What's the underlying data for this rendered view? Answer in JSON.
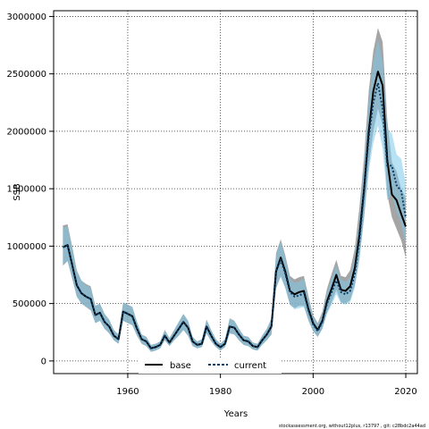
{
  "chart_data": {
    "type": "line",
    "xlabel": "Years",
    "ylabel": "SSB",
    "xlim": [
      1944,
      2022.5
    ],
    "ylim": [
      -110000,
      3050000
    ],
    "xticks": [
      1960,
      1980,
      2000,
      2020
    ],
    "xtick_labels": [
      "1960",
      "1980",
      "2000",
      "2020"
    ],
    "yticks": [
      0,
      500000,
      1000000,
      1500000,
      2000000,
      2500000,
      3000000
    ],
    "ytick_labels": [
      "0",
      "500000",
      "1000000",
      "1500000",
      "2000000",
      "2500000",
      "3000000"
    ],
    "grid": true,
    "legend_position": "bottom-center",
    "footer": "stockassessment.org, without12plus, r13797 , git: c28bdc2a44ad",
    "x": [
      1946,
      1947,
      1948,
      1949,
      1950,
      1951,
      1952,
      1953,
      1954,
      1955,
      1956,
      1957,
      1958,
      1959,
      1960,
      1961,
      1962,
      1963,
      1964,
      1965,
      1966,
      1967,
      1968,
      1969,
      1970,
      1971,
      1972,
      1973,
      1974,
      1975,
      1976,
      1977,
      1978,
      1979,
      1980,
      1981,
      1982,
      1983,
      1984,
      1985,
      1986,
      1987,
      1988,
      1989,
      1990,
      1991,
      1992,
      1993,
      1994,
      1995,
      1996,
      1997,
      1998,
      1999,
      2000,
      2001,
      2002,
      2003,
      2004,
      2005,
      2006,
      2007,
      2008,
      2009,
      2010,
      2011,
      2012,
      2013,
      2014,
      2015,
      2016,
      2017,
      2018,
      2019,
      2020
    ],
    "series": [
      {
        "name": "base",
        "color": "#000000",
        "band_color": "#7f7f7f",
        "values": [
          990000,
          1010000,
          840000,
          660000,
          590000,
          560000,
          540000,
          400000,
          420000,
          340000,
          300000,
          220000,
          190000,
          430000,
          410000,
          390000,
          280000,
          190000,
          170000,
          110000,
          120000,
          140000,
          220000,
          160000,
          220000,
          280000,
          340000,
          290000,
          170000,
          140000,
          150000,
          300000,
          220000,
          150000,
          120000,
          150000,
          300000,
          290000,
          230000,
          180000,
          170000,
          130000,
          120000,
          180000,
          230000,
          300000,
          780000,
          900000,
          780000,
          610000,
          580000,
          600000,
          610000,
          450000,
          330000,
          270000,
          350000,
          520000,
          630000,
          750000,
          620000,
          610000,
          650000,
          810000,
          1100000,
          1500000,
          2000000,
          2350000,
          2520000,
          2400000,
          1750000,
          1450000,
          1400000,
          1280000,
          1170000
        ],
        "lower": [
          830000,
          870000,
          720000,
          560000,
          500000,
          470000,
          440000,
          330000,
          350000,
          280000,
          240000,
          180000,
          150000,
          350000,
          330000,
          310000,
          220000,
          150000,
          130000,
          80000,
          90000,
          110000,
          180000,
          130000,
          180000,
          220000,
          270000,
          220000,
          130000,
          110000,
          120000,
          240000,
          170000,
          120000,
          90000,
          120000,
          240000,
          230000,
          180000,
          140000,
          130000,
          100000,
          90000,
          140000,
          180000,
          230000,
          630000,
          740000,
          640000,
          490000,
          460000,
          480000,
          480000,
          350000,
          260000,
          210000,
          280000,
          420000,
          510000,
          620000,
          510000,
          500000,
          530000,
          660000,
          900000,
          1250000,
          1700000,
          2000000,
          2200000,
          2050000,
          1450000,
          1250000,
          1150000,
          1050000,
          900000
        ],
        "upper": [
          1180000,
          1190000,
          1000000,
          790000,
          700000,
          670000,
          650000,
          480000,
          500000,
          410000,
          360000,
          270000,
          230000,
          510000,
          490000,
          470000,
          340000,
          230000,
          210000,
          140000,
          150000,
          170000,
          270000,
          200000,
          270000,
          340000,
          410000,
          350000,
          210000,
          170000,
          190000,
          360000,
          270000,
          190000,
          150000,
          190000,
          370000,
          350000,
          280000,
          220000,
          210000,
          160000,
          150000,
          220000,
          280000,
          370000,
          940000,
          1060000,
          920000,
          740000,
          710000,
          730000,
          740000,
          560000,
          400000,
          330000,
          430000,
          630000,
          760000,
          880000,
          740000,
          730000,
          790000,
          980000,
          1340000,
          1780000,
          2350000,
          2700000,
          2900000,
          2780000,
          2100000,
          1730000,
          1650000,
          1500000,
          1420000
        ]
      },
      {
        "name": "current",
        "color": "#0b3c66",
        "band_color": "#7ec8ea",
        "values": [
          990000,
          1010000,
          840000,
          660000,
          590000,
          560000,
          540000,
          400000,
          420000,
          340000,
          300000,
          220000,
          190000,
          430000,
          410000,
          390000,
          280000,
          190000,
          170000,
          110000,
          120000,
          140000,
          220000,
          160000,
          220000,
          280000,
          340000,
          290000,
          170000,
          140000,
          150000,
          300000,
          220000,
          150000,
          120000,
          150000,
          300000,
          290000,
          230000,
          180000,
          170000,
          130000,
          120000,
          180000,
          230000,
          300000,
          780000,
          880000,
          760000,
          600000,
          560000,
          570000,
          590000,
          440000,
          320000,
          260000,
          340000,
          500000,
          600000,
          700000,
          600000,
          580000,
          610000,
          760000,
          1050000,
          1480000,
          1950000,
          2250000,
          2420000,
          2200000,
          1700000,
          1700000,
          1530000,
          1480000,
          1250000
        ],
        "lower": [
          840000,
          870000,
          720000,
          560000,
          500000,
          470000,
          450000,
          330000,
          350000,
          280000,
          240000,
          180000,
          150000,
          350000,
          330000,
          310000,
          220000,
          150000,
          130000,
          80000,
          90000,
          110000,
          180000,
          130000,
          180000,
          220000,
          270000,
          220000,
          130000,
          110000,
          120000,
          240000,
          170000,
          120000,
          90000,
          120000,
          240000,
          230000,
          180000,
          140000,
          130000,
          100000,
          90000,
          140000,
          180000,
          230000,
          640000,
          730000,
          630000,
          490000,
          450000,
          460000,
          470000,
          350000,
          260000,
          210000,
          280000,
          410000,
          490000,
          580000,
          500000,
          490000,
          510000,
          640000,
          880000,
          1250000,
          1650000,
          1900000,
          2050000,
          1850000,
          1400000,
          1450000,
          1300000,
          1200000,
          1000000
        ],
        "upper": [
          1160000,
          1170000,
          990000,
          780000,
          700000,
          660000,
          640000,
          480000,
          500000,
          410000,
          360000,
          270000,
          230000,
          510000,
          490000,
          470000,
          340000,
          230000,
          210000,
          140000,
          150000,
          170000,
          270000,
          200000,
          270000,
          340000,
          410000,
          350000,
          210000,
          170000,
          190000,
          360000,
          270000,
          190000,
          150000,
          190000,
          370000,
          350000,
          280000,
          220000,
          210000,
          160000,
          150000,
          220000,
          280000,
          370000,
          930000,
          1040000,
          900000,
          720000,
          680000,
          690000,
          720000,
          540000,
          390000,
          320000,
          410000,
          600000,
          720000,
          830000,
          710000,
          690000,
          730000,
          900000,
          1250000,
          1720000,
          2250000,
          2600000,
          2800000,
          2600000,
          2020000,
          1980000,
          1800000,
          1760000,
          1550000
        ]
      }
    ]
  }
}
